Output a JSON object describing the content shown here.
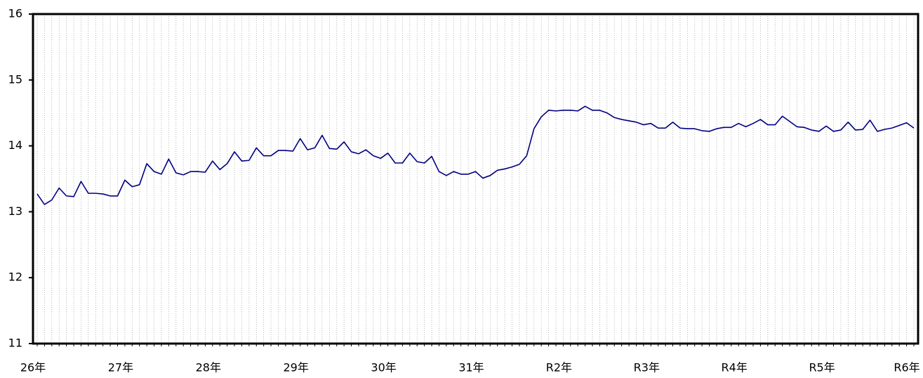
{
  "chart_data": {
    "type": "line",
    "categories": [
      "26年",
      null,
      null,
      null,
      null,
      null,
      null,
      null,
      null,
      null,
      null,
      null,
      "27年",
      null,
      null,
      null,
      null,
      null,
      null,
      null,
      null,
      null,
      null,
      null,
      "28年",
      null,
      null,
      null,
      null,
      null,
      null,
      null,
      null,
      null,
      null,
      null,
      "29年",
      null,
      null,
      null,
      null,
      null,
      null,
      null,
      null,
      null,
      null,
      null,
      "30年",
      null,
      null,
      null,
      null,
      null,
      null,
      null,
      null,
      null,
      null,
      null,
      "31年",
      null,
      null,
      null,
      null,
      null,
      null,
      null,
      null,
      null,
      null,
      null,
      "R2年",
      null,
      null,
      null,
      null,
      null,
      null,
      null,
      null,
      null,
      null,
      null,
      "R3年",
      null,
      null,
      null,
      null,
      null,
      null,
      null,
      null,
      null,
      null,
      null,
      "R4年",
      null,
      null,
      null,
      null,
      null,
      null,
      null,
      null,
      null,
      null,
      null,
      "R5年",
      null,
      null,
      null,
      null,
      null,
      null,
      null,
      null,
      null,
      null,
      null,
      "R6年"
    ],
    "series": [
      {
        "color": "#000080",
        "values": [
          13.27,
          13.11,
          13.18,
          13.36,
          13.24,
          13.23,
          13.46,
          13.28,
          13.28,
          13.27,
          13.24,
          13.24,
          13.48,
          13.38,
          13.41,
          13.73,
          13.61,
          13.57,
          13.8,
          13.59,
          13.56,
          13.61,
          13.61,
          13.6,
          13.77,
          13.64,
          13.73,
          13.91,
          13.77,
          13.78,
          13.97,
          13.85,
          13.85,
          13.93,
          13.93,
          13.92,
          14.11,
          13.94,
          13.97,
          14.16,
          13.96,
          13.95,
          14.06,
          13.91,
          13.88,
          13.94,
          13.85,
          13.81,
          13.89,
          13.74,
          13.74,
          13.89,
          13.76,
          13.74,
          13.84,
          13.61,
          13.55,
          13.61,
          13.57,
          13.57,
          13.61,
          13.51,
          13.55,
          13.63,
          13.65,
          13.68,
          13.72,
          13.85,
          14.26,
          14.44,
          14.54,
          14.53,
          14.54,
          14.54,
          14.53,
          14.6,
          14.54,
          14.54,
          14.5,
          14.43,
          14.4,
          14.38,
          14.36,
          14.32,
          14.34,
          14.27,
          14.27,
          14.36,
          14.27,
          14.26,
          14.26,
          14.23,
          14.22,
          14.26,
          14.28,
          14.28,
          14.34,
          14.29,
          14.34,
          14.4,
          14.32,
          14.32,
          14.45,
          14.37,
          14.29,
          14.28,
          14.24,
          14.22,
          14.3,
          14.22,
          14.24,
          14.36,
          14.24,
          14.25,
          14.39,
          14.22,
          14.25,
          14.27,
          14.31,
          14.35,
          14.27
        ]
      }
    ],
    "ylim": [
      11,
      16
    ],
    "yticks": [
      11,
      12,
      13,
      14,
      15,
      16
    ],
    "grid": true
  }
}
